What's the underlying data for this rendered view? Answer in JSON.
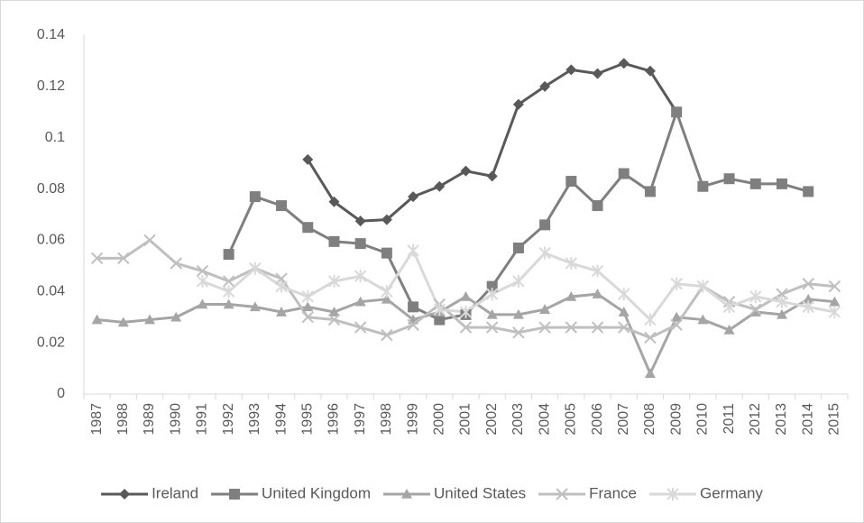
{
  "chart_data": {
    "type": "line",
    "categories": [
      "1987",
      "1988",
      "1989",
      "1990",
      "1991",
      "1992",
      "1993",
      "1994",
      "1995",
      "1996",
      "1997",
      "1998",
      "1999",
      "2000",
      "2001",
      "2002",
      "2003",
      "2004",
      "2005",
      "2006",
      "2007",
      "2008",
      "2009",
      "2010",
      "2011",
      "2012",
      "2013",
      "2014",
      "2015"
    ],
    "series": [
      {
        "name": "Ireland",
        "color": "#595959",
        "marker": "diamond",
        "values": [
          null,
          null,
          null,
          null,
          null,
          null,
          null,
          null,
          0.0915,
          0.075,
          0.0675,
          0.068,
          0.077,
          0.081,
          0.087,
          0.085,
          0.113,
          0.12,
          0.1265,
          0.125,
          0.129,
          0.126,
          0.11,
          null,
          null,
          null,
          null,
          null,
          null
        ]
      },
      {
        "name": "United Kingdom",
        "color": "#7f7f7f",
        "marker": "square",
        "values": [
          null,
          null,
          null,
          null,
          null,
          0.0545,
          0.077,
          0.0735,
          0.065,
          0.0595,
          0.0587,
          0.055,
          0.034,
          0.029,
          0.031,
          0.042,
          0.057,
          0.066,
          0.083,
          0.0735,
          0.086,
          0.079,
          0.11,
          0.081,
          0.084,
          0.082,
          0.082,
          0.079,
          null
        ]
      },
      {
        "name": "United States",
        "color": "#a5a5a5",
        "marker": "triangle",
        "values": [
          0.029,
          0.028,
          0.029,
          0.03,
          0.035,
          0.035,
          0.034,
          0.032,
          0.034,
          0.032,
          0.036,
          0.037,
          0.029,
          0.032,
          0.038,
          0.031,
          0.031,
          0.033,
          0.038,
          0.039,
          0.032,
          0.008,
          0.03,
          0.029,
          0.025,
          0.032,
          0.031,
          0.037,
          0.036
        ]
      },
      {
        "name": "France",
        "color": "#bfbfbf",
        "marker": "x",
        "values": [
          0.053,
          0.053,
          0.06,
          0.051,
          0.048,
          0.044,
          0.049,
          0.045,
          0.03,
          0.029,
          0.026,
          0.023,
          0.027,
          0.035,
          0.026,
          0.026,
          0.024,
          0.026,
          0.026,
          0.026,
          0.026,
          0.022,
          0.027,
          0.042,
          0.036,
          0.033,
          0.039,
          0.043,
          0.042
        ]
      },
      {
        "name": "Germany",
        "color": "#d9d9d9",
        "marker": "star",
        "values": [
          null,
          null,
          null,
          null,
          0.044,
          0.04,
          0.049,
          0.042,
          0.038,
          0.044,
          0.046,
          0.04,
          0.056,
          0.033,
          0.032,
          0.039,
          0.044,
          0.055,
          0.051,
          0.048,
          0.039,
          0.029,
          0.043,
          0.042,
          0.034,
          0.038,
          0.036,
          0.034,
          0.032
        ]
      }
    ],
    "ylim": [
      0,
      0.14
    ],
    "yticks": [
      0,
      0.02,
      0.04,
      0.06,
      0.08,
      0.1,
      0.12,
      0.14
    ],
    "legend": "bottom",
    "grid": false
  }
}
